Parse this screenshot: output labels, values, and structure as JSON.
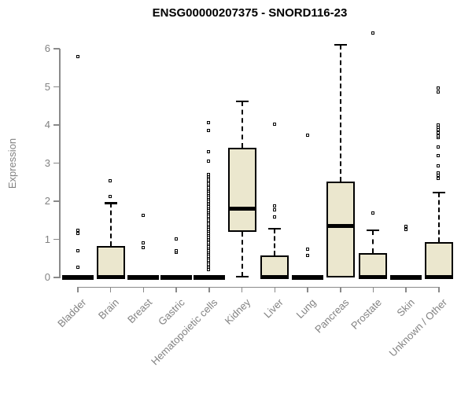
{
  "chart_data": {
    "type": "boxplot",
    "title": "ENSG00000207375 - SNORD116-23",
    "ylabel": "Expression",
    "ylim": [
      0,
      6
    ],
    "yticks": [
      0,
      1,
      2,
      3,
      4,
      5,
      6
    ],
    "grid": false,
    "legend": "none",
    "colors": {
      "box_fill": "#EBE7CE",
      "box_border": "#000000",
      "axis": "#8A8A8A",
      "axis_text": "#828282",
      "title_color": "#000000"
    },
    "categories": [
      "Bladder",
      "Brain",
      "Breast",
      "Gastric",
      "Hematopoietic cells",
      "Kidney",
      "Liver",
      "Lung",
      "Pancreas",
      "Prostate",
      "Skin",
      "Unknown / Other"
    ],
    "series": [
      {
        "category": "Bladder",
        "min": 0,
        "q1": 0,
        "median": 0,
        "q3": 0.02,
        "max": 0.02,
        "outliers": [
          0.26,
          0.7,
          1.15,
          1.22,
          5.78
        ]
      },
      {
        "category": "Brain",
        "min": 0,
        "q1": 0,
        "median": 0.02,
        "q3": 0.82,
        "max": 1.95,
        "outliers": [
          2.12,
          2.52
        ]
      },
      {
        "category": "Breast",
        "min": 0,
        "q1": 0,
        "median": 0,
        "q3": 0.02,
        "max": 0.02,
        "outliers": [
          0.78,
          0.89,
          1.62
        ]
      },
      {
        "category": "Gastric",
        "min": 0,
        "q1": 0,
        "median": 0,
        "q3": 0.02,
        "max": 0.02,
        "outliers": [
          0.64,
          0.7,
          1.0
        ]
      },
      {
        "category": "Hematopoietic cells",
        "min": 0,
        "q1": 0,
        "median": 0,
        "q3": 0.02,
        "max": 0.02,
        "outliers": [
          0.2,
          0.25,
          0.3,
          0.35,
          0.4,
          0.45,
          0.5,
          0.55,
          0.6,
          0.65,
          0.7,
          0.75,
          0.8,
          0.85,
          0.9,
          0.95,
          1.0,
          1.05,
          1.1,
          1.15,
          1.2,
          1.25,
          1.3,
          1.35,
          1.4,
          1.45,
          1.5,
          1.55,
          1.6,
          1.65,
          1.7,
          1.75,
          1.8,
          1.85,
          1.9,
          1.95,
          2.0,
          2.05,
          2.1,
          2.15,
          2.2,
          2.25,
          2.3,
          2.35,
          2.4,
          2.45,
          2.5,
          2.55,
          2.6,
          2.65,
          2.7,
          3.05,
          3.28,
          3.84,
          4.06
        ]
      },
      {
        "category": "Kidney",
        "min": 0.02,
        "q1": 1.2,
        "median": 1.81,
        "q3": 3.4,
        "max": 4.62,
        "outliers": []
      },
      {
        "category": "Liver",
        "min": 0,
        "q1": 0,
        "median": 0.02,
        "q3": 0.58,
        "max": 1.28,
        "outliers": [
          1.57,
          1.77,
          1.86,
          4.02
        ]
      },
      {
        "category": "Lung",
        "min": 0,
        "q1": 0,
        "median": 0,
        "q3": 0.02,
        "max": 0.02,
        "outliers": [
          0.56,
          0.74,
          3.73
        ]
      },
      {
        "category": "Pancreas",
        "min": 0,
        "q1": 0,
        "median": 1.36,
        "q3": 2.52,
        "max": 6.1,
        "outliers": []
      },
      {
        "category": "Prostate",
        "min": 0,
        "q1": 0,
        "median": 0.02,
        "q3": 0.63,
        "max": 1.24,
        "outliers": [
          1.68,
          6.4
        ]
      },
      {
        "category": "Skin",
        "min": 0,
        "q1": 0,
        "median": 0,
        "q3": 0.02,
        "max": 0.02,
        "outliers": [
          1.24,
          1.34
        ]
      },
      {
        "category": "Unknown / Other",
        "min": 0,
        "q1": 0,
        "median": 0.02,
        "q3": 0.93,
        "max": 2.23,
        "outliers": [
          2.58,
          2.68,
          2.74,
          2.91,
          3.19,
          3.42,
          3.67,
          3.71,
          3.79,
          3.86,
          3.92,
          3.98,
          4.86,
          4.95
        ]
      }
    ]
  }
}
